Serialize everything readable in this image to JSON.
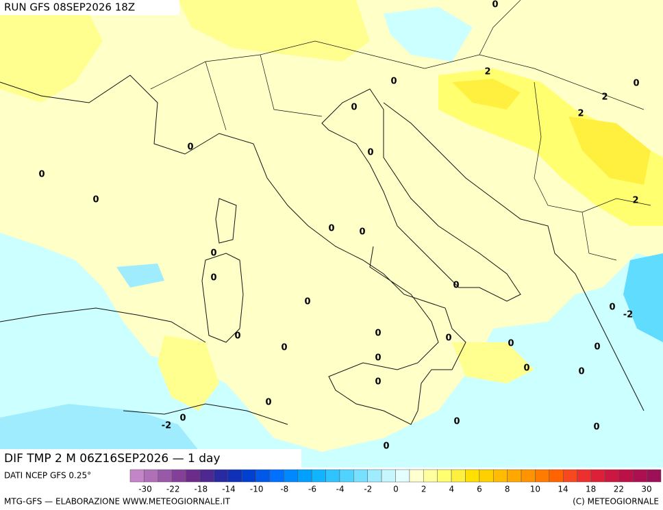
{
  "header": {
    "run": "RUN GFS 08SEP2026 18Z"
  },
  "map": {
    "field_label": "DIF TMP 2 M 06Z16SEP2026 — 1 day",
    "contour_labels": [
      "0",
      "2",
      "0",
      "2",
      "0",
      "0",
      "2",
      "0",
      "0",
      "0",
      "0",
      "2",
      "0",
      "0",
      "0",
      "0",
      "0",
      "0",
      "0",
      "-2",
      "0",
      "0",
      "0",
      "0",
      "0",
      "0",
      "0",
      "0",
      "0",
      "0",
      "0",
      "0",
      "-2",
      "0",
      "0",
      "0"
    ]
  },
  "legend": {
    "source": "DATI NCEP GFS 0.25°",
    "labels": [
      "-30",
      "-22",
      "-18",
      "-14",
      "-10",
      "-8",
      "-6",
      "-4",
      "-2",
      "0",
      "2",
      "4",
      "6",
      "8",
      "10",
      "14",
      "18",
      "22",
      "30"
    ],
    "colors": [
      "#c484c8",
      "#b070b8",
      "#9a58a8",
      "#844098",
      "#6c2c8c",
      "#4c2890",
      "#2a2aa0",
      "#1030b8",
      "#0040d0",
      "#0058e8",
      "#0070ff",
      "#0088ff",
      "#00a0ff",
      "#10b4ff",
      "#30c4ff",
      "#50d4ff",
      "#78e0ff",
      "#a0ecff",
      "#c8f6ff",
      "#e4feff",
      "#ffffd0",
      "#ffffa0",
      "#ffff70",
      "#fff040",
      "#ffe000",
      "#ffd000",
      "#ffbc00",
      "#ffa800",
      "#ff9400",
      "#ff7c00",
      "#ff6400",
      "#f84820",
      "#ec3030",
      "#dc2038",
      "#cc1840",
      "#bc1048",
      "#ac1050",
      "#9c1058"
    ]
  },
  "footer": {
    "left": "MTG-GFS — ELABORAZIONE WWW.METEOGIORNALE.IT",
    "right": "(C) METEOGIORNALE"
  }
}
